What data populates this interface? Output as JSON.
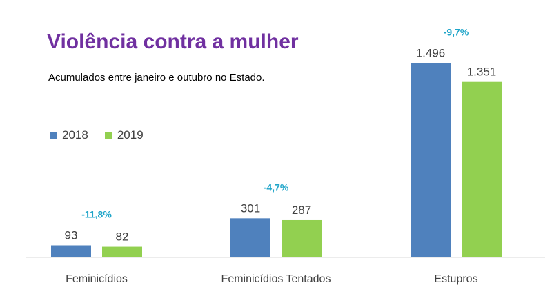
{
  "title": "Violência contra a mulher",
  "subtitle": "Acumulados entre janeiro e outubro no Estado.",
  "colors": {
    "title": "#7030a0",
    "s2018": "#4f81bd",
    "s2019": "#92d050",
    "pct": "#1fa5c9"
  },
  "chart_data": {
    "type": "bar",
    "title": "Violência contra a mulher",
    "subtitle": "Acumulados entre janeiro e outubro no Estado.",
    "categories": [
      "Feminicídios",
      "Feminicídios Tentados",
      "Estupros"
    ],
    "series": [
      {
        "name": "2018",
        "values": [
          93,
          301,
          1496
        ],
        "labels": [
          "93",
          "301",
          "1.496"
        ]
      },
      {
        "name": "2019",
        "values": [
          82,
          287,
          1351
        ],
        "labels": [
          "82",
          "287",
          "1.351"
        ]
      }
    ],
    "changes": [
      "-11,8%",
      "-4,7%",
      "-9,7%"
    ],
    "ylim": [
      0,
      1700
    ],
    "grid": false,
    "legend": "left"
  }
}
